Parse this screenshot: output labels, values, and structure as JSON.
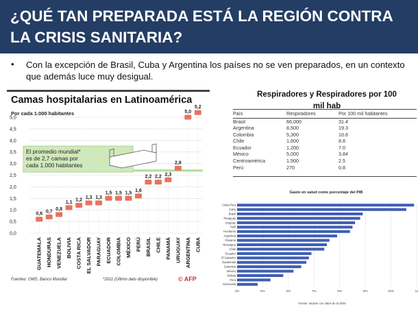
{
  "header": {
    "title_line1": "¿QUÉ TAN PREPARADA ESTÁ LA REGIÓN CONTRA",
    "title_line2": "LA CRISIS SANITARIA?",
    "background": "#243d64"
  },
  "bullet": {
    "symbol": "•",
    "text": "Con la excepción  de Brasil, Cuba y Argentina los países no se ven preparados, en un contexto que además luce muy desigual."
  },
  "beds_infographic": {
    "title": "Camas hospitalarias en Latinoamérica",
    "subtitle": "Por cada 1.000 habitantes",
    "callout_line1": "El promedio mundial*",
    "callout_line2": "es de 2,7 camas por",
    "callout_line3": "cada 1.000 habitantes",
    "source": "Fuentes: OMS, Banco Mundial",
    "note": "*2011 (Último dato disponible)",
    "logo": "© AFP",
    "bar_color": "#e8735e",
    "callout_color": "#a9d88d"
  },
  "respirators_table": {
    "title_line1": "Respiradores y Respiradores por 100",
    "title_line2": "mil hab",
    "headers": [
      "País",
      "Respiradores",
      "Por 100 mil  habitantes"
    ],
    "rows": [
      [
        "Brasil",
        "66,000",
        "31.4"
      ],
      [
        "Argentina",
        "8,500",
        "19.3"
      ],
      [
        "Colombia",
        "5,300",
        "10.6"
      ],
      [
        "Chile",
        "1,600",
        "8.8"
      ],
      [
        "Ecuador",
        "1,200",
        "7.0"
      ],
      [
        "México",
        "5,000",
        "3.84"
      ],
      [
        "Centroamérica",
        "1,500",
        "2.5"
      ],
      [
        "Perú",
        "270",
        "0.8"
      ]
    ]
  },
  "chart_data": [
    {
      "type": "scatter",
      "title": "Camas hospitalarias en Latinoamérica",
      "subtitle": "Por cada 1.000 habitantes",
      "categories": [
        "GUATEMALA",
        "HONDURAS",
        "VENEZUELA",
        "BOLIVIA",
        "COSTA RICA",
        "EL SALVADOR",
        "PARAGUAY",
        "ECUADOR",
        "COLOMBIA",
        "MÉXICO",
        "PERÚ",
        "BRASIL",
        "CHILE",
        "PANAMÁ",
        "URUGUAY",
        "ARGENTINA",
        "CUBA"
      ],
      "values": [
        0.6,
        0.7,
        0.8,
        1.1,
        1.2,
        1.3,
        1.3,
        1.5,
        1.5,
        1.5,
        1.6,
        2.2,
        2.2,
        2.3,
        2.8,
        5.0,
        5.2
      ],
      "value_labels": [
        "0,6",
        "0,7",
        "0,8",
        "1,1",
        "1,2",
        "1,3",
        "1,3",
        "1,5",
        "1,5",
        "1,5",
        "1,6",
        "2,2",
        "2,2",
        "2,3",
        "2,8",
        "5,0",
        "5,2"
      ],
      "ytick_labels": [
        "0,0",
        "0,5",
        "1,0",
        "1,5",
        "2,0",
        "2,5",
        "3,0",
        "3,5",
        "4,0",
        "4,5",
        "5,0"
      ],
      "ylim": [
        0,
        5.0
      ],
      "reference_value": 2.7
    },
    {
      "type": "bar",
      "title": "Gasto en salud como porcentaje del PIB",
      "orientation": "horizontal",
      "categories": [
        "Costa Rica",
        "Cuba",
        "Brasil",
        "Paraguay",
        "Uruguay",
        "Haití",
        "Honduras",
        "Argentina",
        "Panamá",
        "Nicaragua",
        "Chile",
        "Ecuador",
        "El Salvador",
        "Guatemala",
        "Colombia",
        "México",
        "Bolivia",
        "Perú",
        "Venezuela"
      ],
      "values": [
        10.9,
        10.6,
        8.9,
        8.8,
        8.6,
        8.5,
        8.4,
        7.9,
        7.6,
        7.5,
        7.4,
        6.9,
        6.8,
        6.7,
        6.5,
        6.2,
        5.8,
        5.3,
        4.8
      ],
      "xtick_labels": [
        "4%",
        "5%",
        "6%",
        "7%",
        "8%",
        "9%",
        "10%",
        "11"
      ],
      "xlim": [
        4,
        11
      ],
      "source": "Fuente: totdose con datos de la OMS",
      "bar_color": "#3f5fb5"
    }
  ]
}
